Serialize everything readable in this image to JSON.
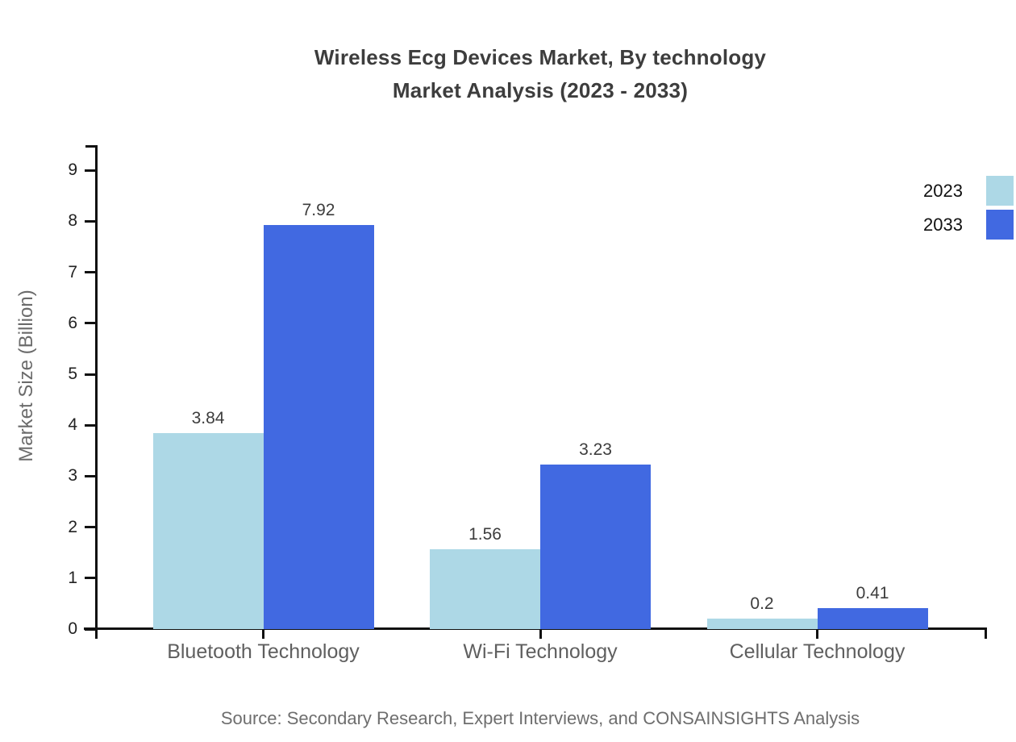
{
  "title": {
    "line1": "Wireless Ecg Devices Market, By technology",
    "line2": "Market Analysis (2023 - 2033)"
  },
  "source": "Source: Secondary Research, Expert Interviews, and CONSAINSIGHTS Analysis",
  "chart_data": {
    "type": "bar",
    "title": "Wireless Ecg Devices Market, By technology Market Analysis (2023 - 2033)",
    "categories": [
      "Bluetooth Technology",
      "Wi-Fi Technology",
      "Cellular Technology"
    ],
    "series": [
      {
        "name": "2023",
        "color": "#ADD8E6",
        "values": [
          3.84,
          1.56,
          0.2
        ]
      },
      {
        "name": "2033",
        "color": "#4169E1",
        "values": [
          7.92,
          3.23,
          0.41
        ]
      }
    ],
    "xlabel": "",
    "ylabel": "Market Size (Billion)",
    "ylim": [
      0,
      9.46
    ],
    "yticks": [
      0,
      1,
      2,
      3,
      4,
      5,
      6,
      7,
      8,
      9
    ],
    "grid": false,
    "legend_position": "top-right",
    "value_labels_shown": true,
    "axis_color": "#111111",
    "background_color": "#FFFFFF"
  }
}
